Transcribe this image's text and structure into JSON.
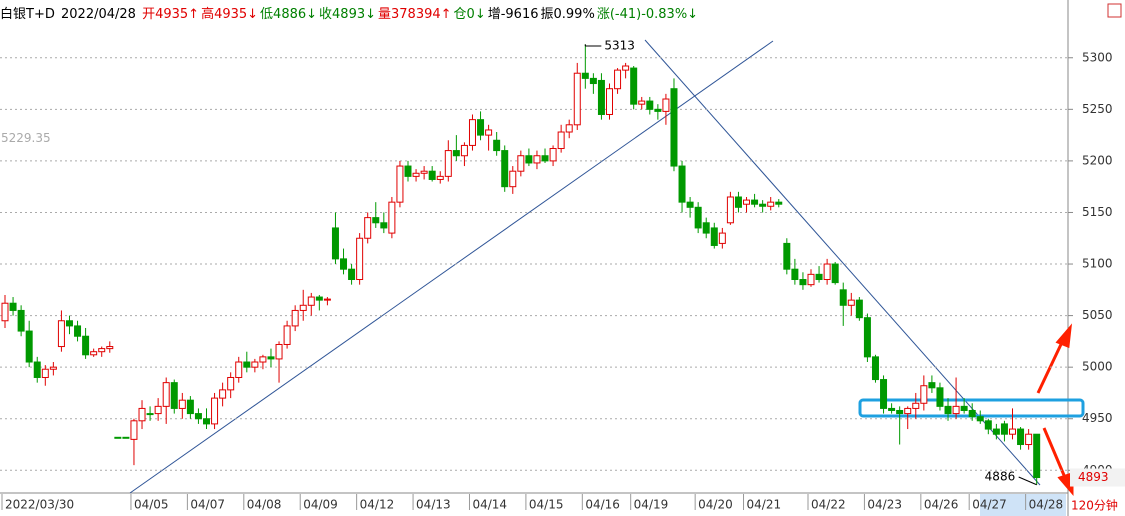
{
  "header": {
    "name": "白银T+D",
    "date": "2022/04/28",
    "segments": [
      {
        "text": "开4935↑",
        "color": "#e00000"
      },
      {
        "text": "高4935↓",
        "color": "#e00000"
      },
      {
        "text": "低4886↓",
        "color": "#008000"
      },
      {
        "text": "收4893↓",
        "color": "#008000"
      },
      {
        "text": "量378394↑",
        "color": "#e00000"
      },
      {
        "text": "仓0↓",
        "color": "#008000"
      },
      {
        "text": "增-9616",
        "color": "#000000"
      },
      {
        "text": "振0.99%",
        "color": "#000000"
      },
      {
        "text": "涨(-41)-0.83%↓",
        "color": "#008000"
      }
    ]
  },
  "chart_data": {
    "type": "candlestick",
    "up_color": "#e00000",
    "down_color": "#009900",
    "grid": true,
    "ylim": [
      4878,
      5356
    ],
    "yticks": [
      4900,
      4950,
      5000,
      5050,
      5100,
      5150,
      5200,
      5250,
      5300
    ],
    "high_label": 5313,
    "low_label": 4886,
    "cursor_label": 5229.35,
    "last_price": 4893,
    "period": "120分钟",
    "categories": [
      "2022/03/30",
      null,
      null,
      null,
      null,
      null,
      null,
      null,
      null,
      null,
      null,
      null,
      null,
      null,
      null,
      null,
      "04/05",
      null,
      null,
      null,
      null,
      null,
      null,
      "04/07",
      null,
      null,
      null,
      null,
      null,
      null,
      "04/08",
      null,
      null,
      null,
      null,
      null,
      null,
      "04/09",
      null,
      null,
      null,
      null,
      null,
      null,
      "04/12",
      null,
      null,
      null,
      null,
      null,
      null,
      "04/13",
      null,
      null,
      null,
      null,
      null,
      null,
      "04/14",
      null,
      null,
      null,
      null,
      null,
      null,
      "04/15",
      null,
      null,
      null,
      null,
      null,
      null,
      "04/16",
      null,
      null,
      null,
      null,
      null,
      "04/19",
      null,
      null,
      null,
      null,
      null,
      null,
      null,
      "04/20",
      null,
      null,
      null,
      null,
      null,
      "04/21",
      null,
      null,
      null,
      null,
      null,
      null,
      null,
      "04/22",
      null,
      null,
      null,
      null,
      null,
      null,
      "04/23",
      null,
      null,
      null,
      null,
      null,
      null,
      "04/26",
      null,
      null,
      null,
      null,
      null,
      "04/27",
      null,
      null,
      null,
      null,
      null,
      null,
      "04/28",
      null
    ],
    "candles": [
      [
        5045,
        5070,
        5038,
        5062
      ],
      [
        5062,
        5068,
        5050,
        5055
      ],
      [
        5055,
        5060,
        5030,
        5035
      ],
      [
        5035,
        5045,
        5000,
        5005
      ],
      [
        5005,
        5010,
        4985,
        4990
      ],
      [
        4990,
        5002,
        4982,
        4998
      ],
      [
        4998,
        5005,
        4992,
        5000
      ],
      [
        5020,
        5055,
        5015,
        5045
      ],
      [
        5045,
        5050,
        5032,
        5040
      ],
      [
        5040,
        5045,
        5025,
        5030
      ],
      [
        5030,
        5038,
        5008,
        5012
      ],
      [
        5012,
        5018,
        5010,
        5015
      ],
      [
        5015,
        5020,
        5010,
        5018
      ],
      [
        5018,
        5025,
        5014,
        5020
      ],
      [
        4932,
        4932,
        4932,
        4932
      ],
      [
        4932,
        4932,
        4932,
        4932
      ],
      [
        4930,
        4950,
        4905,
        4948
      ],
      [
        4948,
        4968,
        4940,
        4960
      ],
      [
        4955,
        4962,
        4948,
        4955
      ],
      [
        4955,
        4970,
        4948,
        4962
      ],
      [
        4962,
        4990,
        4945,
        4985
      ],
      [
        4985,
        4988,
        4955,
        4960
      ],
      [
        4960,
        4975,
        4950,
        4968
      ],
      [
        4968,
        4972,
        4950,
        4955
      ],
      [
        4955,
        4960,
        4945,
        4950
      ],
      [
        4950,
        4960,
        4940,
        4945
      ],
      [
        4945,
        4975,
        4940,
        4970
      ],
      [
        4970,
        4985,
        4962,
        4978
      ],
      [
        4978,
        4995,
        4970,
        4990
      ],
      [
        4990,
        5010,
        4985,
        5005
      ],
      [
        5005,
        5015,
        4995,
        5000
      ],
      [
        5000,
        5008,
        4995,
        5005
      ],
      [
        5005,
        5012,
        4998,
        5010
      ],
      [
        5010,
        5018,
        5000,
        5008
      ],
      [
        5008,
        5025,
        4985,
        5022
      ],
      [
        5022,
        5045,
        5018,
        5040
      ],
      [
        5040,
        5060,
        5035,
        5055
      ],
      [
        5055,
        5075,
        5045,
        5060
      ],
      [
        5060,
        5072,
        5050,
        5068
      ],
      [
        5068,
        5070,
        5055,
        5065
      ],
      [
        5065,
        5068,
        5060,
        5066
      ],
      [
        5135,
        5150,
        5100,
        5105
      ],
      [
        5105,
        5115,
        5090,
        5095
      ],
      [
        5095,
        5100,
        5080,
        5085
      ],
      [
        5085,
        5130,
        5080,
        5125
      ],
      [
        5125,
        5150,
        5120,
        5145
      ],
      [
        5145,
        5160,
        5135,
        5140
      ],
      [
        5140,
        5150,
        5130,
        5135
      ],
      [
        5130,
        5165,
        5125,
        5160
      ],
      [
        5160,
        5200,
        5155,
        5195
      ],
      [
        5195,
        5200,
        5180,
        5185
      ],
      [
        5185,
        5192,
        5180,
        5188
      ],
      [
        5188,
        5195,
        5182,
        5190
      ],
      [
        5190,
        5195,
        5180,
        5182
      ],
      [
        5182,
        5190,
        5178,
        5185
      ],
      [
        5185,
        5220,
        5180,
        5210
      ],
      [
        5210,
        5225,
        5200,
        5205
      ],
      [
        5205,
        5218,
        5195,
        5215
      ],
      [
        5215,
        5245,
        5210,
        5240
      ],
      [
        5240,
        5248,
        5220,
        5225
      ],
      [
        5225,
        5235,
        5210,
        5230
      ],
      [
        5220,
        5228,
        5205,
        5210
      ],
      [
        5210,
        5215,
        5170,
        5175
      ],
      [
        5175,
        5195,
        5168,
        5190
      ],
      [
        5190,
        5210,
        5185,
        5205
      ],
      [
        5205,
        5212,
        5195,
        5198
      ],
      [
        5198,
        5210,
        5192,
        5205
      ],
      [
        5205,
        5212,
        5198,
        5200
      ],
      [
        5200,
        5215,
        5195,
        5212
      ],
      [
        5212,
        5235,
        5208,
        5228
      ],
      [
        5228,
        5240,
        5222,
        5235
      ],
      [
        5235,
        5295,
        5230,
        5285
      ],
      [
        5285,
        5313,
        5270,
        5280
      ],
      [
        5280,
        5285,
        5265,
        5275
      ],
      [
        5278,
        5285,
        5240,
        5245
      ],
      [
        5245,
        5275,
        5240,
        5270
      ],
      [
        5270,
        5290,
        5265,
        5288
      ],
      [
        5288,
        5295,
        5280,
        5292
      ],
      [
        5290,
        5292,
        5250,
        5255
      ],
      [
        5255,
        5262,
        5250,
        5258
      ],
      [
        5258,
        5262,
        5245,
        5250
      ],
      [
        5250,
        5255,
        5240,
        5248
      ],
      [
        5248,
        5265,
        5235,
        5260
      ],
      [
        5270,
        5280,
        5190,
        5195
      ],
      [
        5195,
        5200,
        5150,
        5160
      ],
      [
        5160,
        5165,
        5145,
        5155
      ],
      [
        5155,
        5160,
        5130,
        5135
      ],
      [
        5140,
        5145,
        5125,
        5130
      ],
      [
        5135,
        5140,
        5115,
        5118
      ],
      [
        5120,
        5135,
        5115,
        5130
      ],
      [
        5140,
        5170,
        5138,
        5165
      ],
      [
        5165,
        5170,
        5150,
        5155
      ],
      [
        5158,
        5165,
        5150,
        5162
      ],
      [
        5162,
        5168,
        5155,
        5158
      ],
      [
        5158,
        5162,
        5150,
        5156
      ],
      [
        5156,
        5165,
        5152,
        5160
      ],
      [
        5160,
        5163,
        5155,
        5158
      ],
      [
        5120,
        5125,
        5090,
        5095
      ],
      [
        5095,
        5105,
        5080,
        5085
      ],
      [
        5085,
        5092,
        5075,
        5080
      ],
      [
        5080,
        5095,
        5078,
        5090
      ],
      [
        5090,
        5098,
        5082,
        5085
      ],
      [
        5085,
        5105,
        5080,
        5100
      ],
      [
        5100,
        5102,
        5080,
        5082
      ],
      [
        5075,
        5082,
        5040,
        5060
      ],
      [
        5060,
        5072,
        5050,
        5065
      ],
      [
        5065,
        5068,
        5045,
        5048
      ],
      [
        5048,
        5052,
        5005,
        5010
      ],
      [
        5010,
        5012,
        4985,
        4988
      ],
      [
        4988,
        4992,
        4955,
        4960
      ],
      [
        4960,
        4965,
        4955,
        4958
      ],
      [
        4958,
        4962,
        4925,
        4955
      ],
      [
        4955,
        4962,
        4940,
        4960
      ],
      [
        4960,
        4975,
        4950,
        4965
      ],
      [
        4965,
        4992,
        4958,
        4982
      ],
      [
        4985,
        4992,
        4975,
        4980
      ],
      [
        4980,
        4985,
        4958,
        4962
      ],
      [
        4962,
        4970,
        4948,
        4955
      ],
      [
        4955,
        4990,
        4950,
        4962
      ],
      [
        4962,
        4970,
        4955,
        4958
      ],
      [
        4958,
        4965,
        4948,
        4952
      ],
      [
        4952,
        4958,
        4945,
        4948
      ],
      [
        4948,
        4950,
        4935,
        4940
      ],
      [
        4940,
        4945,
        4930,
        4935
      ],
      [
        4945,
        4948,
        4928,
        4935
      ],
      [
        4935,
        4960,
        4930,
        4940
      ],
      [
        4940,
        4942,
        4920,
        4925
      ],
      [
        4925,
        4940,
        4920,
        4935
      ],
      [
        4935,
        4935,
        4886,
        4893
      ]
    ]
  }
}
